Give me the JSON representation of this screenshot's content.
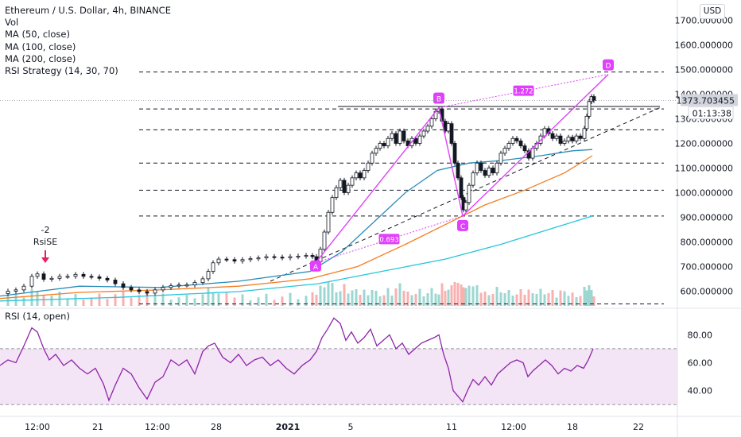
{
  "chart_data": {
    "type": "candlestick",
    "title": "Ethereum / U.S. Dollar, 4h, BINANCE",
    "indicators": [
      "Vol",
      "MA (50, close)",
      "MA (100, close)",
      "MA (200, close)",
      "RSI Strategy (14, 30, 70)"
    ],
    "currency": "USD",
    "y_axis": {
      "ticks": [
        600,
        700,
        800,
        900,
        1000,
        1100,
        1200,
        1300,
        1400,
        1500,
        1600,
        1700
      ],
      "tick_labels": [
        "600.000000",
        "700.000000",
        "800.000000",
        "900.000000",
        "1000.000000",
        "1100.000000",
        "1200.000000",
        "1300.000000",
        "1400.000000",
        "1500.000000",
        "1600.000000",
        "1700.000000"
      ],
      "ylim": [
        540,
        1750
      ]
    },
    "x_axis": {
      "tick_labels": [
        "12:00",
        "21",
        "12:00",
        "28",
        "2021",
        "5",
        "11",
        "12:00",
        "18",
        "22"
      ]
    },
    "price_label": "1373.703455",
    "countdown_label": "01:13:38",
    "strategy_signal": {
      "count": "-2",
      "label": "RsiSE"
    },
    "price_series": [
      {
        "x": 0,
        "y": 590
      },
      {
        "x": 10,
        "y": 600
      },
      {
        "x": 20,
        "y": 605
      },
      {
        "x": 30,
        "y": 620
      },
      {
        "x": 40,
        "y": 660
      },
      {
        "x": 47,
        "y": 670
      },
      {
        "x": 55,
        "y": 648
      },
      {
        "x": 65,
        "y": 652
      },
      {
        "x": 75,
        "y": 660
      },
      {
        "x": 85,
        "y": 660
      },
      {
        "x": 95,
        "y": 668
      },
      {
        "x": 105,
        "y": 660
      },
      {
        "x": 115,
        "y": 658
      },
      {
        "x": 125,
        "y": 652
      },
      {
        "x": 135,
        "y": 645
      },
      {
        "x": 145,
        "y": 630
      },
      {
        "x": 155,
        "y": 615
      },
      {
        "x": 165,
        "y": 605
      },
      {
        "x": 175,
        "y": 598
      },
      {
        "x": 185,
        "y": 592
      },
      {
        "x": 195,
        "y": 605
      },
      {
        "x": 205,
        "y": 615
      },
      {
        "x": 215,
        "y": 622
      },
      {
        "x": 225,
        "y": 625
      },
      {
        "x": 235,
        "y": 625
      },
      {
        "x": 245,
        "y": 635
      },
      {
        "x": 255,
        "y": 650
      },
      {
        "x": 262,
        "y": 680
      },
      {
        "x": 268,
        "y": 715
      },
      {
        "x": 275,
        "y": 730
      },
      {
        "x": 285,
        "y": 728
      },
      {
        "x": 295,
        "y": 722
      },
      {
        "x": 305,
        "y": 728
      },
      {
        "x": 315,
        "y": 732
      },
      {
        "x": 325,
        "y": 735
      },
      {
        "x": 335,
        "y": 740
      },
      {
        "x": 345,
        "y": 738
      },
      {
        "x": 355,
        "y": 735
      },
      {
        "x": 365,
        "y": 740
      },
      {
        "x": 375,
        "y": 742
      },
      {
        "x": 385,
        "y": 745
      },
      {
        "x": 393,
        "y": 740
      },
      {
        "x": 398,
        "y": 720
      },
      {
        "x": 403,
        "y": 770
      },
      {
        "x": 408,
        "y": 840
      },
      {
        "x": 413,
        "y": 920
      },
      {
        "x": 418,
        "y": 980
      },
      {
        "x": 423,
        "y": 1020
      },
      {
        "x": 428,
        "y": 1050
      },
      {
        "x": 433,
        "y": 1000
      },
      {
        "x": 438,
        "y": 1030
      },
      {
        "x": 443,
        "y": 1060
      },
      {
        "x": 448,
        "y": 1080
      },
      {
        "x": 453,
        "y": 1060
      },
      {
        "x": 458,
        "y": 1090
      },
      {
        "x": 463,
        "y": 1120
      },
      {
        "x": 468,
        "y": 1160
      },
      {
        "x": 473,
        "y": 1180
      },
      {
        "x": 478,
        "y": 1200
      },
      {
        "x": 483,
        "y": 1190
      },
      {
        "x": 488,
        "y": 1220
      },
      {
        "x": 493,
        "y": 1240
      },
      {
        "x": 498,
        "y": 1200
      },
      {
        "x": 503,
        "y": 1250
      },
      {
        "x": 508,
        "y": 1210
      },
      {
        "x": 513,
        "y": 1190
      },
      {
        "x": 518,
        "y": 1220
      },
      {
        "x": 523,
        "y": 1200
      },
      {
        "x": 528,
        "y": 1230
      },
      {
        "x": 533,
        "y": 1250
      },
      {
        "x": 538,
        "y": 1270
      },
      {
        "x": 543,
        "y": 1300
      },
      {
        "x": 548,
        "y": 1330
      },
      {
        "x": 552,
        "y": 1340
      },
      {
        "x": 556,
        "y": 1290
      },
      {
        "x": 560,
        "y": 1250
      },
      {
        "x": 564,
        "y": 1280
      },
      {
        "x": 568,
        "y": 1200
      },
      {
        "x": 572,
        "y": 1120
      },
      {
        "x": 576,
        "y": 1060
      },
      {
        "x": 580,
        "y": 980
      },
      {
        "x": 583,
        "y": 930
      },
      {
        "x": 586,
        "y": 960
      },
      {
        "x": 590,
        "y": 1030
      },
      {
        "x": 595,
        "y": 1080
      },
      {
        "x": 600,
        "y": 1120
      },
      {
        "x": 605,
        "y": 1090
      },
      {
        "x": 610,
        "y": 1070
      },
      {
        "x": 615,
        "y": 1100
      },
      {
        "x": 620,
        "y": 1080
      },
      {
        "x": 625,
        "y": 1120
      },
      {
        "x": 630,
        "y": 1160
      },
      {
        "x": 635,
        "y": 1180
      },
      {
        "x": 640,
        "y": 1200
      },
      {
        "x": 645,
        "y": 1220
      },
      {
        "x": 650,
        "y": 1210
      },
      {
        "x": 655,
        "y": 1190
      },
      {
        "x": 660,
        "y": 1170
      },
      {
        "x": 665,
        "y": 1140
      },
      {
        "x": 670,
        "y": 1180
      },
      {
        "x": 675,
        "y": 1200
      },
      {
        "x": 680,
        "y": 1230
      },
      {
        "x": 685,
        "y": 1260
      },
      {
        "x": 690,
        "y": 1240
      },
      {
        "x": 695,
        "y": 1220
      },
      {
        "x": 700,
        "y": 1230
      },
      {
        "x": 705,
        "y": 1200
      },
      {
        "x": 710,
        "y": 1210
      },
      {
        "x": 715,
        "y": 1225
      },
      {
        "x": 720,
        "y": 1210
      },
      {
        "x": 725,
        "y": 1230
      },
      {
        "x": 730,
        "y": 1220
      },
      {
        "x": 735,
        "y": 1260
      },
      {
        "x": 738,
        "y": 1310
      },
      {
        "x": 741,
        "y": 1370
      },
      {
        "x": 744,
        "y": 1390
      },
      {
        "x": 747,
        "y": 1374
      }
    ],
    "moving_averages": [
      {
        "name": "MA (50, close)",
        "color": "#2a8cb8",
        "points": [
          {
            "x": 0,
            "y": 580
          },
          {
            "x": 100,
            "y": 620
          },
          {
            "x": 200,
            "y": 615
          },
          {
            "x": 300,
            "y": 640
          },
          {
            "x": 390,
            "y": 680
          },
          {
            "x": 430,
            "y": 760
          },
          {
            "x": 470,
            "y": 880
          },
          {
            "x": 510,
            "y": 1000
          },
          {
            "x": 550,
            "y": 1090
          },
          {
            "x": 590,
            "y": 1120
          },
          {
            "x": 630,
            "y": 1130
          },
          {
            "x": 680,
            "y": 1150
          },
          {
            "x": 720,
            "y": 1170
          },
          {
            "x": 745,
            "y": 1175
          }
        ]
      },
      {
        "name": "MA (100, close)",
        "color": "#f57c1f",
        "points": [
          {
            "x": 0,
            "y": 570
          },
          {
            "x": 100,
            "y": 595
          },
          {
            "x": 200,
            "y": 605
          },
          {
            "x": 300,
            "y": 620
          },
          {
            "x": 390,
            "y": 650
          },
          {
            "x": 450,
            "y": 700
          },
          {
            "x": 510,
            "y": 790
          },
          {
            "x": 560,
            "y": 870
          },
          {
            "x": 610,
            "y": 950
          },
          {
            "x": 660,
            "y": 1010
          },
          {
            "x": 710,
            "y": 1080
          },
          {
            "x": 745,
            "y": 1150
          }
        ]
      },
      {
        "name": "MA (200, close)",
        "color": "#26c6da",
        "points": [
          {
            "x": 0,
            "y": 560
          },
          {
            "x": 150,
            "y": 575
          },
          {
            "x": 300,
            "y": 598
          },
          {
            "x": 400,
            "y": 630
          },
          {
            "x": 480,
            "y": 680
          },
          {
            "x": 560,
            "y": 730
          },
          {
            "x": 630,
            "y": 790
          },
          {
            "x": 700,
            "y": 860
          },
          {
            "x": 745,
            "y": 905
          }
        ]
      }
    ],
    "horizontal_levels": [
      1490,
      1340,
      1255,
      1120,
      1010,
      905,
      548
    ],
    "harmonic_pattern": {
      "points": [
        {
          "label": "A",
          "x": 397,
          "y": 715
        },
        {
          "label": "B",
          "x": 552,
          "y": 1345
        },
        {
          "label": "C",
          "x": 582,
          "y": 905
        },
        {
          "label": "D",
          "x": 765,
          "y": 1480
        }
      ],
      "ratio_labels": [
        "0.693",
        "1.272"
      ]
    },
    "rsi": {
      "name": "RSI (14, open)",
      "ticks": [
        40,
        60,
        80
      ],
      "tick_labels": [
        "40.00",
        "60.00",
        "80.00"
      ],
      "ylim": [
        25,
        95
      ],
      "bands": [
        30,
        70
      ],
      "points": [
        {
          "x": 0,
          "y": 58
        },
        {
          "x": 10,
          "y": 62
        },
        {
          "x": 20,
          "y": 60
        },
        {
          "x": 30,
          "y": 72
        },
        {
          "x": 40,
          "y": 85
        },
        {
          "x": 47,
          "y": 82
        },
        {
          "x": 55,
          "y": 70
        },
        {
          "x": 62,
          "y": 62
        },
        {
          "x": 70,
          "y": 66
        },
        {
          "x": 80,
          "y": 58
        },
        {
          "x": 90,
          "y": 62
        },
        {
          "x": 100,
          "y": 56
        },
        {
          "x": 110,
          "y": 52
        },
        {
          "x": 120,
          "y": 56
        },
        {
          "x": 130,
          "y": 45
        },
        {
          "x": 137,
          "y": 33
        },
        {
          "x": 145,
          "y": 44
        },
        {
          "x": 155,
          "y": 56
        },
        {
          "x": 165,
          "y": 52
        },
        {
          "x": 175,
          "y": 42
        },
        {
          "x": 185,
          "y": 34
        },
        {
          "x": 195,
          "y": 46
        },
        {
          "x": 205,
          "y": 50
        },
        {
          "x": 215,
          "y": 62
        },
        {
          "x": 225,
          "y": 58
        },
        {
          "x": 235,
          "y": 62
        },
        {
          "x": 245,
          "y": 52
        },
        {
          "x": 255,
          "y": 68
        },
        {
          "x": 262,
          "y": 72
        },
        {
          "x": 270,
          "y": 74
        },
        {
          "x": 280,
          "y": 64
        },
        {
          "x": 290,
          "y": 60
        },
        {
          "x": 300,
          "y": 66
        },
        {
          "x": 310,
          "y": 58
        },
        {
          "x": 320,
          "y": 62
        },
        {
          "x": 330,
          "y": 64
        },
        {
          "x": 340,
          "y": 58
        },
        {
          "x": 350,
          "y": 62
        },
        {
          "x": 360,
          "y": 56
        },
        {
          "x": 370,
          "y": 52
        },
        {
          "x": 380,
          "y": 58
        },
        {
          "x": 390,
          "y": 62
        },
        {
          "x": 398,
          "y": 68
        },
        {
          "x": 405,
          "y": 78
        },
        {
          "x": 412,
          "y": 84
        },
        {
          "x": 420,
          "y": 92
        },
        {
          "x": 428,
          "y": 88
        },
        {
          "x": 435,
          "y": 76
        },
        {
          "x": 442,
          "y": 82
        },
        {
          "x": 450,
          "y": 74
        },
        {
          "x": 458,
          "y": 78
        },
        {
          "x": 466,
          "y": 84
        },
        {
          "x": 474,
          "y": 72
        },
        {
          "x": 482,
          "y": 76
        },
        {
          "x": 490,
          "y": 80
        },
        {
          "x": 498,
          "y": 70
        },
        {
          "x": 506,
          "y": 74
        },
        {
          "x": 514,
          "y": 66
        },
        {
          "x": 522,
          "y": 70
        },
        {
          "x": 530,
          "y": 74
        },
        {
          "x": 538,
          "y": 76
        },
        {
          "x": 546,
          "y": 78
        },
        {
          "x": 552,
          "y": 80
        },
        {
          "x": 558,
          "y": 66
        },
        {
          "x": 564,
          "y": 56
        },
        {
          "x": 570,
          "y": 40
        },
        {
          "x": 576,
          "y": 36
        },
        {
          "x": 582,
          "y": 32
        },
        {
          "x": 588,
          "y": 40
        },
        {
          "x": 595,
          "y": 48
        },
        {
          "x": 602,
          "y": 44
        },
        {
          "x": 610,
          "y": 50
        },
        {
          "x": 618,
          "y": 44
        },
        {
          "x": 626,
          "y": 52
        },
        {
          "x": 634,
          "y": 56
        },
        {
          "x": 642,
          "y": 60
        },
        {
          "x": 650,
          "y": 62
        },
        {
          "x": 658,
          "y": 60
        },
        {
          "x": 664,
          "y": 50
        },
        {
          "x": 670,
          "y": 54
        },
        {
          "x": 678,
          "y": 58
        },
        {
          "x": 686,
          "y": 62
        },
        {
          "x": 694,
          "y": 58
        },
        {
          "x": 702,
          "y": 52
        },
        {
          "x": 710,
          "y": 56
        },
        {
          "x": 718,
          "y": 54
        },
        {
          "x": 726,
          "y": 58
        },
        {
          "x": 734,
          "y": 56
        },
        {
          "x": 740,
          "y": 62
        },
        {
          "x": 746,
          "y": 70
        }
      ]
    },
    "colors": {
      "up": "#26a69a",
      "down": "#ef5350",
      "harmonic": "#e040fb",
      "rsi_line": "#8e24aa",
      "rsi_band": "#f3e5f5",
      "price_tag": "#d1d4dc",
      "axis_text": "#131722"
    }
  }
}
